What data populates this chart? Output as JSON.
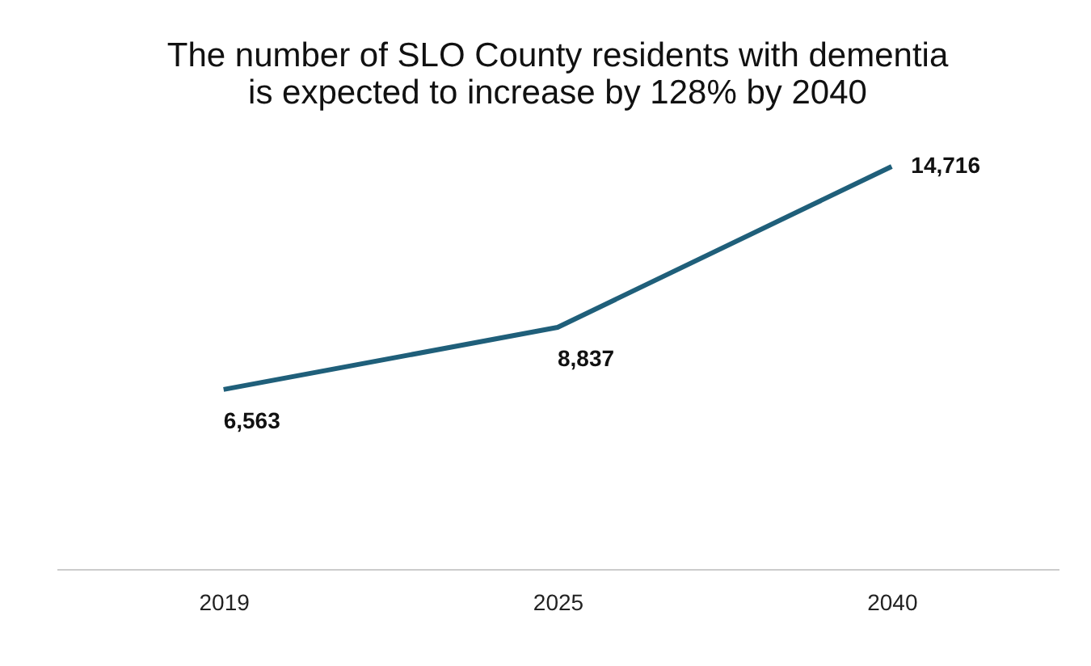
{
  "chart_data": {
    "type": "line",
    "title": [
      "The number of SLO County residents with dementia",
      "is expected to increase by 128% by 2040"
    ],
    "categories": [
      "2019",
      "2025",
      "2040"
    ],
    "series": [
      {
        "color": "#1f5f7a",
        "values": [
          6563,
          8837,
          14716
        ],
        "value_labels": [
          "6,563",
          "8,837",
          "14,716"
        ]
      }
    ],
    "grid": false,
    "marker": "none",
    "line_style": "solid"
  }
}
